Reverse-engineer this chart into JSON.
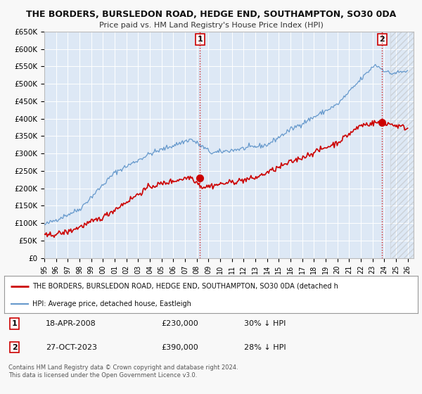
{
  "title": "THE BORDERS, BURSLEDON ROAD, HEDGE END, SOUTHAMPTON, SO30 0DA",
  "subtitle": "Price paid vs. HM Land Registry's House Price Index (HPI)",
  "ylim": [
    0,
    650000
  ],
  "xlim_start": 1995.0,
  "xlim_end": 2026.5,
  "yticks": [
    0,
    50000,
    100000,
    150000,
    200000,
    250000,
    300000,
    350000,
    400000,
    450000,
    500000,
    550000,
    600000,
    650000
  ],
  "ytick_labels": [
    "£0",
    "£50K",
    "£100K",
    "£150K",
    "£200K",
    "£250K",
    "£300K",
    "£350K",
    "£400K",
    "£450K",
    "£500K",
    "£550K",
    "£600K",
    "£650K"
  ],
  "hpi_color": "#6699cc",
  "price_color": "#cc0000",
  "plot_bg": "#dde8f5",
  "grid_color": "#ffffff",
  "fig_bg": "#f8f8f8",
  "marker1_date": 2008.29,
  "marker1_price": 230000,
  "marker2_date": 2023.82,
  "marker2_price": 390000,
  "vline1_x": 2008.29,
  "vline2_x": 2023.82,
  "legend_line1": "THE BORDERS, BURSLEDON ROAD, HEDGE END, SOUTHAMPTON, SO30 0DA (detached h",
  "legend_line2": "HPI: Average price, detached house, Eastleigh",
  "annotation1_date": "18-APR-2008",
  "annotation1_price": "£230,000",
  "annotation1_hpi": "30% ↓ HPI",
  "annotation2_date": "27-OCT-2023",
  "annotation2_price": "£390,000",
  "annotation2_hpi": "28% ↓ HPI",
  "footer1": "Contains HM Land Registry data © Crown copyright and database right 2024.",
  "footer2": "This data is licensed under the Open Government Licence v3.0."
}
